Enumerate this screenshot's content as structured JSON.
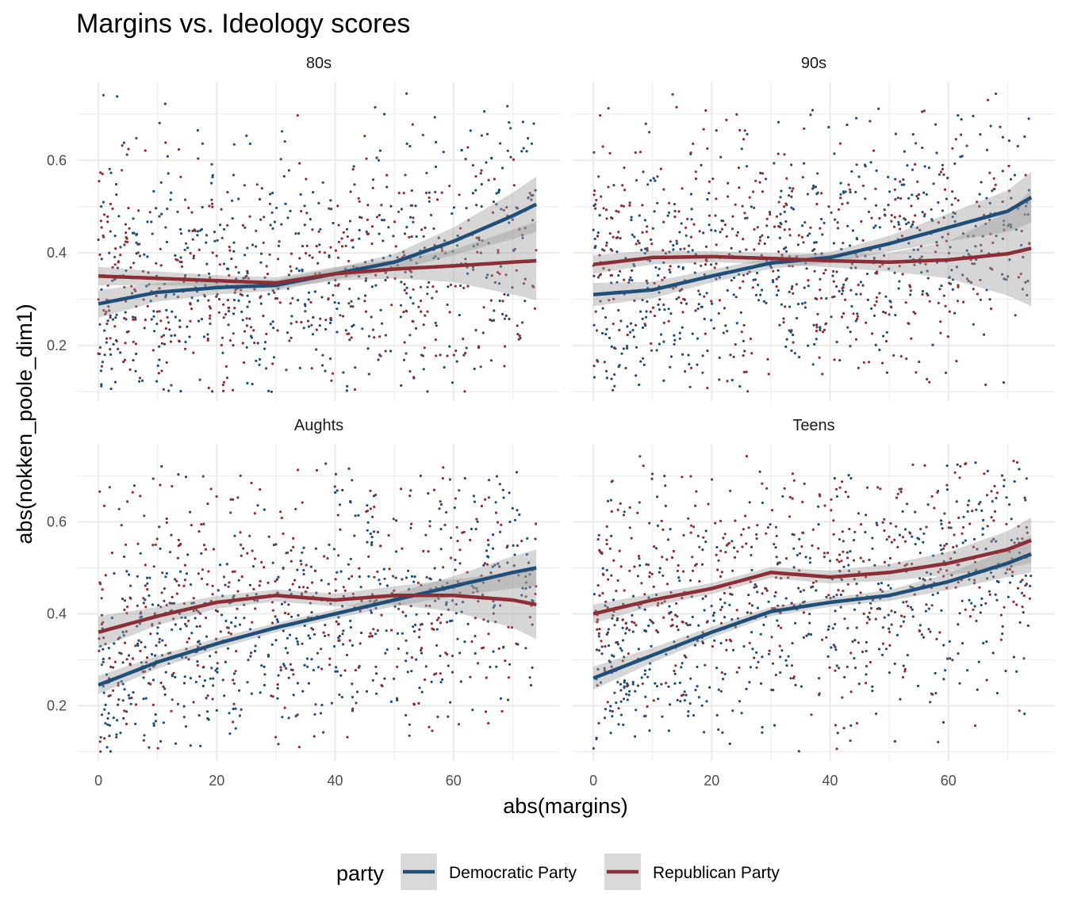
{
  "chart_data": {
    "type": "scatter",
    "title": "Margins vs. Ideology scores",
    "xlabel": "abs(margins)",
    "ylabel": "abs(nokken_poole_dim1)",
    "xlim": [
      -3.5,
      78
    ],
    "ylim": [
      0.08,
      0.77
    ],
    "x_ticks": [
      0,
      20,
      40,
      60
    ],
    "y_ticks": [
      0.2,
      0.4,
      0.6
    ],
    "grid": true,
    "legend_position": "bottom",
    "legend_title": "party",
    "colors": {
      "Democratic Party": "#1f4e79",
      "Republican Party": "#8b2e36"
    },
    "panels": [
      {
        "label": "80s",
        "point_density": {
          "Democratic Party": 520,
          "Republican Party": 480
        },
        "series": [
          {
            "name": "Democratic Party",
            "x": [
              0,
              10,
              20,
              30,
              40,
              50,
              60,
              70,
              74
            ],
            "y": [
              0.29,
              0.315,
              0.325,
              0.33,
              0.355,
              0.38,
              0.425,
              0.48,
              0.505
            ],
            "band": [
              0.03,
              0.02,
              0.015,
              0.012,
              0.012,
              0.018,
              0.03,
              0.05,
              0.06
            ]
          },
          {
            "name": "Republican Party",
            "x": [
              0,
              10,
              20,
              30,
              40,
              50,
              60,
              70,
              74
            ],
            "y": [
              0.35,
              0.345,
              0.34,
              0.335,
              0.355,
              0.365,
              0.372,
              0.38,
              0.383
            ],
            "band": [
              0.02,
              0.015,
              0.012,
              0.012,
              0.015,
              0.02,
              0.035,
              0.07,
              0.085
            ]
          }
        ]
      },
      {
        "label": "90s",
        "point_density": {
          "Democratic Party": 540,
          "Republican Party": 500
        },
        "series": [
          {
            "name": "Democratic Party",
            "x": [
              0,
              10,
              20,
              30,
              40,
              50,
              60,
              70,
              74
            ],
            "y": [
              0.31,
              0.32,
              0.35,
              0.378,
              0.39,
              0.42,
              0.455,
              0.49,
              0.52
            ],
            "band": [
              0.025,
              0.018,
              0.014,
              0.012,
              0.012,
              0.017,
              0.03,
              0.045,
              0.055
            ]
          },
          {
            "name": "Republican Party",
            "x": [
              0,
              10,
              20,
              30,
              40,
              50,
              60,
              70,
              74
            ],
            "y": [
              0.375,
              0.39,
              0.392,
              0.388,
              0.383,
              0.38,
              0.385,
              0.398,
              0.41
            ],
            "band": [
              0.02,
              0.015,
              0.012,
              0.012,
              0.014,
              0.02,
              0.04,
              0.09,
              0.125
            ]
          }
        ]
      },
      {
        "label": "Aughts",
        "point_density": {
          "Democratic Party": 560,
          "Republican Party": 480
        },
        "series": [
          {
            "name": "Democratic Party",
            "x": [
              0,
              10,
              20,
              30,
              40,
              50,
              60,
              70,
              74
            ],
            "y": [
              0.245,
              0.295,
              0.335,
              0.37,
              0.4,
              0.43,
              0.46,
              0.49,
              0.5
            ],
            "band": [
              0.02,
              0.014,
              0.012,
              0.01,
              0.01,
              0.014,
              0.022,
              0.035,
              0.04
            ]
          },
          {
            "name": "Republican Party",
            "x": [
              0,
              10,
              20,
              30,
              40,
              50,
              60,
              70,
              74
            ],
            "y": [
              0.36,
              0.395,
              0.425,
              0.44,
              0.43,
              0.44,
              0.44,
              0.43,
              0.42
            ],
            "band": [
              0.035,
              0.02,
              0.014,
              0.013,
              0.014,
              0.02,
              0.035,
              0.06,
              0.075
            ]
          }
        ]
      },
      {
        "label": "Teens",
        "point_density": {
          "Democratic Party": 520,
          "Republican Party": 520
        },
        "series": [
          {
            "name": "Democratic Party",
            "x": [
              0,
              10,
              20,
              30,
              40,
              50,
              60,
              70,
              74
            ],
            "y": [
              0.26,
              0.31,
              0.36,
              0.405,
              0.425,
              0.44,
              0.47,
              0.51,
              0.53
            ],
            "band": [
              0.025,
              0.016,
              0.012,
              0.01,
              0.01,
              0.012,
              0.018,
              0.03,
              0.04
            ]
          },
          {
            "name": "Republican Party",
            "x": [
              0,
              10,
              20,
              30,
              40,
              50,
              60,
              70,
              74
            ],
            "y": [
              0.4,
              0.43,
              0.455,
              0.49,
              0.48,
              0.49,
              0.51,
              0.54,
              0.56
            ],
            "band": [
              0.02,
              0.014,
              0.012,
              0.012,
              0.014,
              0.018,
              0.025,
              0.04,
              0.05
            ]
          }
        ]
      }
    ]
  }
}
